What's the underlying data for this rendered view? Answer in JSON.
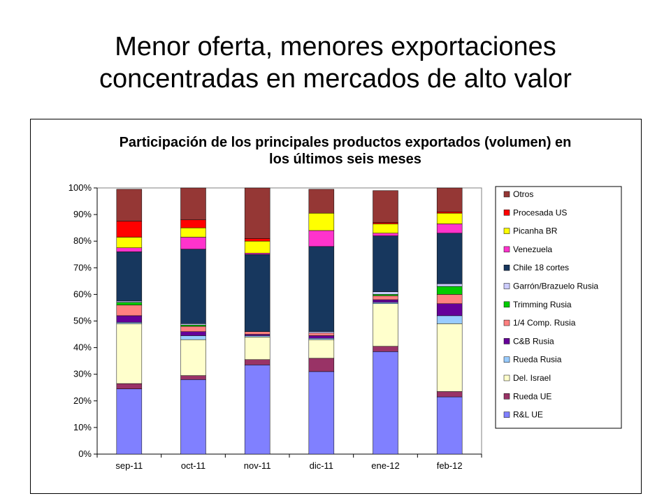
{
  "slide": {
    "title_line1": "Menor oferta, menores exportaciones",
    "title_line2": "concentradas en mercados de alto valor"
  },
  "chart_data": {
    "type": "bar",
    "stacked": "percent",
    "title_line1": "Participación de los principales productos exportados (volumen) en",
    "title_line2": "los últimos seis meses",
    "xlabel": "",
    "ylabel": "",
    "ylim": [
      0,
      100
    ],
    "yticks": [
      "0%",
      "10%",
      "20%",
      "30%",
      "40%",
      "50%",
      "60%",
      "70%",
      "80%",
      "90%",
      "100%"
    ],
    "categories": [
      "sep-11",
      "oct-11",
      "nov-11",
      "dic-11",
      "ene-12",
      "feb-12"
    ],
    "legend_position": "right",
    "grid": false,
    "series": [
      {
        "name": "R&L UE",
        "color": "#8080FF",
        "values": [
          24.5,
          28.0,
          33.5,
          31.0,
          38.5,
          21.5
        ]
      },
      {
        "name": "Rueda UE",
        "color": "#993366",
        "values": [
          2.0,
          1.5,
          2.0,
          5.0,
          2.0,
          2.0
        ]
      },
      {
        "name": "Del. Israel",
        "color": "#FFFFCC",
        "values": [
          22.5,
          13.5,
          8.5,
          7.0,
          16.0,
          25.5
        ]
      },
      {
        "name": "Rueda Rusia",
        "color": "#99CCFF",
        "values": [
          0.5,
          1.5,
          0.5,
          0.5,
          0.5,
          3.0
        ]
      },
      {
        "name": "C&B Rusia",
        "color": "#660099",
        "values": [
          2.5,
          1.5,
          0.5,
          1.0,
          1.0,
          4.5
        ]
      },
      {
        "name": "1/4 Comp. Rusia",
        "color": "#FF8080",
        "values": [
          4.0,
          2.0,
          1.0,
          1.0,
          1.5,
          3.5
        ]
      },
      {
        "name": "Trimming Rusia",
        "color": "#00CC00",
        "values": [
          1.0,
          0.5,
          0.0,
          0.0,
          0.5,
          3.0
        ]
      },
      {
        "name": "Garrón/Brazuelo Rusia",
        "color": "#CCCCFF",
        "values": [
          0.5,
          0.5,
          0.0,
          0.5,
          1.0,
          1.0
        ]
      },
      {
        "name": "Chile 18 cortes",
        "color": "#17375E",
        "values": [
          18.5,
          28.0,
          29.0,
          32.0,
          21.0,
          19.0
        ]
      },
      {
        "name": "Venezuela",
        "color": "#FF33CC",
        "values": [
          1.5,
          4.5,
          0.5,
          6.0,
          1.0,
          3.5
        ]
      },
      {
        "name": "Picanha BR",
        "color": "#FFFF00",
        "values": [
          4.0,
          3.5,
          4.5,
          6.5,
          3.5,
          4.0
        ]
      },
      {
        "name": "Procesada US",
        "color": "#FF0000",
        "values": [
          6.0,
          3.0,
          1.0,
          0.0,
          0.5,
          0.5
        ]
      },
      {
        "name": "Otros",
        "color": "#953735",
        "values": [
          12.0,
          12.0,
          19.0,
          9.0,
          12.0,
          9.0
        ]
      }
    ]
  }
}
